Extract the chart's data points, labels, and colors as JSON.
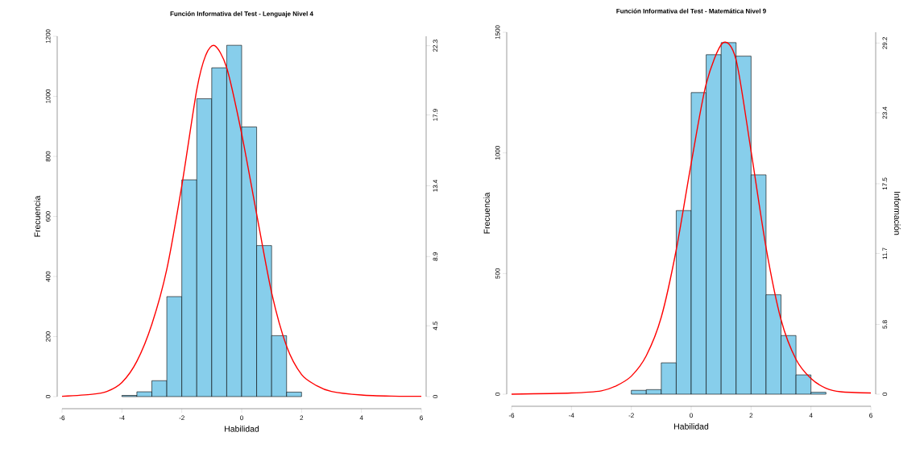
{
  "chart_data": [
    {
      "type": "histogram",
      "title": "Función Informativa del Test - Lenguaje Nivel 4",
      "xlabel": "Habilidad",
      "ylabel": "Frecuencia",
      "xlim": [
        -6,
        6
      ],
      "xticks": [
        -6,
        -4,
        -2,
        0,
        2,
        4,
        6
      ],
      "ylim": [
        0,
        1200
      ],
      "yticks": [
        0,
        200,
        400,
        600,
        800,
        1000,
        1200
      ],
      "y2lim": [
        0,
        22.9
      ],
      "y2ticks": [
        0,
        4.5,
        8.9,
        13.4,
        17.9,
        22.3
      ],
      "series": [
        {
          "color": "#87ceeb",
          "bins": [
            -4,
            -3.5,
            -3,
            -2.5,
            -2,
            -1.5,
            -1,
            -0.5,
            0,
            0.5,
            1,
            1.5,
            2
          ],
          "values": [
            4,
            16,
            53,
            333,
            722,
            992,
            1095,
            1170,
            898,
            503,
            203,
            15
          ]
        },
        {
          "type": "line",
          "axis": "y2",
          "color": "#ff0000",
          "x": [
            -6,
            -5,
            -4.5,
            -4,
            -3.5,
            -3,
            -2.5,
            -2,
            -1.5,
            -1.2,
            -0.9,
            -0.5,
            0,
            0.5,
            1,
            1.5,
            2,
            2.5,
            3,
            4,
            5,
            6
          ],
          "values": [
            0.02,
            0.15,
            0.33,
            0.9,
            2.25,
            4.6,
            8.1,
            13.4,
            19.5,
            21.7,
            22.3,
            20.9,
            16.7,
            11.6,
            6.6,
            3.2,
            1.4,
            0.7,
            0.33,
            0.1,
            0.03,
            0.02
          ]
        }
      ]
    },
    {
      "type": "histogram",
      "title": "Función Informativa del Test - Matemática Nivel 9",
      "xlabel": "Habilidad",
      "ylabel": "Frecuencia",
      "y2label": "Información",
      "xlim": [
        -6,
        6
      ],
      "xticks": [
        -6,
        -4,
        -2,
        0,
        2,
        4,
        6
      ],
      "ylim": [
        0,
        1500
      ],
      "yticks": [
        0,
        500,
        1000,
        1500
      ],
      "y2lim": [
        0,
        30.1
      ],
      "y2ticks": [
        0,
        5.8,
        11.7,
        17.5,
        23.4,
        29.2
      ],
      "series": [
        {
          "color": "#87ceeb",
          "bins": [
            -2,
            -1.5,
            -1,
            -0.5,
            0,
            0.5,
            1,
            1.5,
            2,
            2.5,
            3,
            3.5,
            4,
            4.5
          ],
          "values": [
            16,
            19,
            130,
            761,
            1250,
            1407,
            1457,
            1401,
            909,
            412,
            243,
            80,
            8
          ]
        },
        {
          "type": "line",
          "axis": "y2",
          "color": "#ff0000",
          "x": [
            -6,
            -4,
            -3,
            -2.5,
            -2,
            -1.5,
            -1,
            -0.5,
            0,
            0.5,
            1.05,
            1.5,
            2,
            2.5,
            3,
            3.5,
            4,
            4.5,
            5,
            6
          ],
          "values": [
            0,
            0.1,
            0.28,
            0.7,
            1.5,
            3.2,
            6.4,
            12.0,
            19.2,
            25.8,
            29.2,
            27.8,
            20.2,
            12.2,
            6.2,
            2.9,
            1.3,
            0.5,
            0.2,
            0.1
          ]
        }
      ]
    }
  ]
}
